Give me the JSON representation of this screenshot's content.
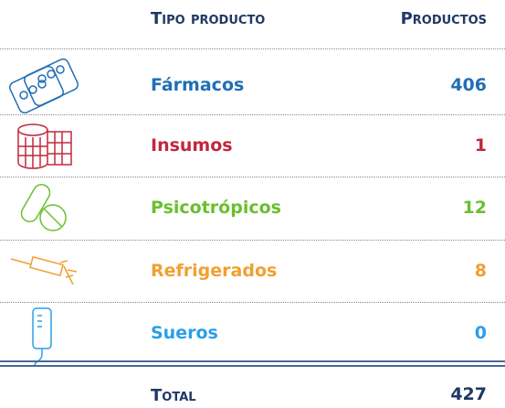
{
  "table": {
    "header": [
      "Tipo producto",
      "Productos"
    ],
    "rows": [
      {
        "name": "Fármacos",
        "value": "406",
        "color": "#1f6fb5"
      },
      {
        "name": "Insumos",
        "value": "1",
        "color": "#c0283c"
      },
      {
        "name": "Psicotrópicos",
        "value": "12",
        "color": "#6abf2e"
      },
      {
        "name": "Refrigerados",
        "value": "8",
        "color": "#f0a030"
      },
      {
        "name": "Sueros",
        "value": "0",
        "color": "#2a9fe8"
      }
    ],
    "total": {
      "label": "Total",
      "value": "427"
    }
  }
}
